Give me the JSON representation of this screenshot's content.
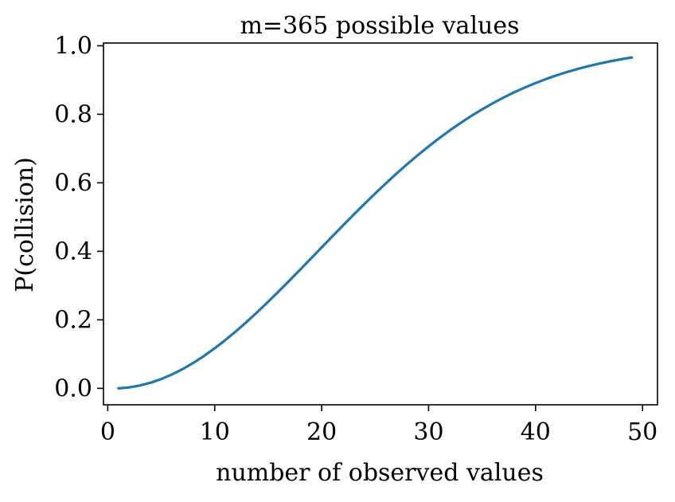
{
  "chart_data": {
    "type": "line",
    "title": "m=365 possible values",
    "xlabel": "number of observed values",
    "ylabel": "P(collision)",
    "xlim": [
      -0.4,
      51.4
    ],
    "ylim": [
      -0.048,
      1.008
    ],
    "xticks": [
      0,
      10,
      20,
      30,
      40,
      50
    ],
    "xtick_labels": [
      "0",
      "10",
      "20",
      "30",
      "40",
      "50"
    ],
    "yticks": [
      0.0,
      0.2,
      0.4,
      0.6,
      0.8,
      1.0
    ],
    "ytick_labels": [
      "0.0",
      "0.2",
      "0.4",
      "0.6",
      "0.8",
      "1.0"
    ],
    "grid": false,
    "series": [
      {
        "color": "#1f77b4",
        "x": [
          1,
          2,
          3,
          4,
          5,
          6,
          7,
          8,
          9,
          10,
          11,
          12,
          13,
          14,
          15,
          16,
          17,
          18,
          19,
          20,
          21,
          22,
          23,
          24,
          25,
          26,
          27,
          28,
          29,
          30,
          31,
          32,
          33,
          34,
          35,
          36,
          37,
          38,
          39,
          40,
          41,
          42,
          43,
          44,
          45,
          46,
          47,
          48,
          49
        ],
        "y": [
          0.0,
          0.0027,
          0.0082,
          0.0164,
          0.0271,
          0.0405,
          0.0562,
          0.0743,
          0.0946,
          0.1169,
          0.1411,
          0.167,
          0.1944,
          0.2231,
          0.2529,
          0.2836,
          0.315,
          0.3469,
          0.3791,
          0.4114,
          0.4437,
          0.4757,
          0.5073,
          0.5383,
          0.5687,
          0.5982,
          0.6269,
          0.6545,
          0.681,
          0.7063,
          0.7305,
          0.7533,
          0.775,
          0.7953,
          0.8144,
          0.8322,
          0.8487,
          0.8641,
          0.8782,
          0.8912,
          0.9032,
          0.914,
          0.9239,
          0.9329,
          0.941,
          0.9483,
          0.9548,
          0.9606,
          0.9658
        ]
      }
    ]
  }
}
